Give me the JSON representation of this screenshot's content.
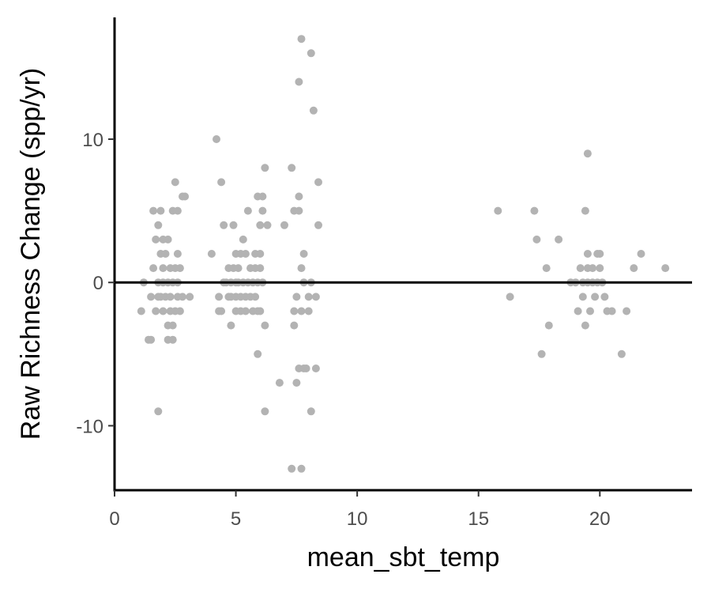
{
  "chart_data": {
    "type": "scatter",
    "xlabel": "mean_sbt_temp",
    "ylabel": "Raw Richness Change (spp/yr)",
    "xlim": [
      0,
      23.8
    ],
    "ylim": [
      -14.5,
      18.5
    ],
    "x_ticks": [
      0,
      5,
      10,
      15,
      20
    ],
    "y_ticks": [
      -10,
      0,
      10
    ],
    "grid": false,
    "legend": "none",
    "reference_line_y": 0,
    "point_color": "#b3b3b3",
    "points": [
      {
        "x": 1.1,
        "y": -2
      },
      {
        "x": 1.2,
        "y": 0
      },
      {
        "x": 1.4,
        "y": -4
      },
      {
        "x": 1.5,
        "y": -4
      },
      {
        "x": 1.5,
        "y": -1
      },
      {
        "x": 1.6,
        "y": 5
      },
      {
        "x": 1.6,
        "y": 1
      },
      {
        "x": 1.7,
        "y": 3
      },
      {
        "x": 1.7,
        "y": -2
      },
      {
        "x": 1.8,
        "y": 4
      },
      {
        "x": 1.8,
        "y": 0
      },
      {
        "x": 1.8,
        "y": -1
      },
      {
        "x": 1.8,
        "y": -9
      },
      {
        "x": 1.9,
        "y": 5
      },
      {
        "x": 1.9,
        "y": 2
      },
      {
        "x": 1.9,
        "y": -1
      },
      {
        "x": 2.0,
        "y": 3
      },
      {
        "x": 2.0,
        "y": 1
      },
      {
        "x": 2.0,
        "y": 0
      },
      {
        "x": 2.0,
        "y": -2
      },
      {
        "x": 2.1,
        "y": 2
      },
      {
        "x": 2.1,
        "y": -1
      },
      {
        "x": 2.2,
        "y": 3
      },
      {
        "x": 2.2,
        "y": 0
      },
      {
        "x": 2.2,
        "y": -3
      },
      {
        "x": 2.2,
        "y": -4
      },
      {
        "x": 2.3,
        "y": 1
      },
      {
        "x": 2.3,
        "y": -1
      },
      {
        "x": 2.3,
        "y": -2
      },
      {
        "x": 2.4,
        "y": 5
      },
      {
        "x": 2.4,
        "y": 0
      },
      {
        "x": 2.4,
        "y": -3
      },
      {
        "x": 2.4,
        "y": -4
      },
      {
        "x": 2.5,
        "y": 7
      },
      {
        "x": 2.5,
        "y": 1
      },
      {
        "x": 2.5,
        "y": -2
      },
      {
        "x": 2.6,
        "y": 5
      },
      {
        "x": 2.6,
        "y": 2
      },
      {
        "x": 2.6,
        "y": 0
      },
      {
        "x": 2.6,
        "y": -1
      },
      {
        "x": 2.7,
        "y": 1
      },
      {
        "x": 2.7,
        "y": -2
      },
      {
        "x": 2.8,
        "y": 6
      },
      {
        "x": 2.8,
        "y": -1
      },
      {
        "x": 2.9,
        "y": 6
      },
      {
        "x": 3.1,
        "y": -1
      },
      {
        "x": 4.0,
        "y": 2
      },
      {
        "x": 4.2,
        "y": 10
      },
      {
        "x": 4.3,
        "y": -1
      },
      {
        "x": 4.3,
        "y": -2
      },
      {
        "x": 4.4,
        "y": 7
      },
      {
        "x": 4.4,
        "y": -2
      },
      {
        "x": 4.5,
        "y": 0
      },
      {
        "x": 4.5,
        "y": 4
      },
      {
        "x": 4.6,
        "y": 0
      },
      {
        "x": 4.7,
        "y": 1
      },
      {
        "x": 4.7,
        "y": -1
      },
      {
        "x": 4.8,
        "y": 0
      },
      {
        "x": 4.8,
        "y": -1
      },
      {
        "x": 4.8,
        "y": -3
      },
      {
        "x": 4.9,
        "y": 4
      },
      {
        "x": 4.9,
        "y": 1
      },
      {
        "x": 5.0,
        "y": 2
      },
      {
        "x": 5.0,
        "y": 0
      },
      {
        "x": 5.0,
        "y": -1
      },
      {
        "x": 5.0,
        "y": -2
      },
      {
        "x": 5.1,
        "y": 1
      },
      {
        "x": 5.1,
        "y": 0
      },
      {
        "x": 5.2,
        "y": 2
      },
      {
        "x": 5.2,
        "y": -1
      },
      {
        "x": 5.2,
        "y": -2
      },
      {
        "x": 5.3,
        "y": 3
      },
      {
        "x": 5.3,
        "y": 0
      },
      {
        "x": 5.4,
        "y": 2
      },
      {
        "x": 5.4,
        "y": -1
      },
      {
        "x": 5.4,
        "y": -2
      },
      {
        "x": 5.5,
        "y": 5
      },
      {
        "x": 5.5,
        "y": 0
      },
      {
        "x": 5.6,
        "y": 1
      },
      {
        "x": 5.6,
        "y": -1
      },
      {
        "x": 5.7,
        "y": 0
      },
      {
        "x": 5.7,
        "y": -2
      },
      {
        "x": 5.8,
        "y": 2
      },
      {
        "x": 5.8,
        "y": 1
      },
      {
        "x": 5.8,
        "y": -1
      },
      {
        "x": 5.9,
        "y": 6
      },
      {
        "x": 5.9,
        "y": 0
      },
      {
        "x": 5.9,
        "y": -2
      },
      {
        "x": 5.9,
        "y": -5
      },
      {
        "x": 6.0,
        "y": 4
      },
      {
        "x": 6.0,
        "y": 2
      },
      {
        "x": 6.0,
        "y": 1
      },
      {
        "x": 6.0,
        "y": -2
      },
      {
        "x": 6.1,
        "y": 6
      },
      {
        "x": 6.1,
        "y": 5
      },
      {
        "x": 6.1,
        "y": 0
      },
      {
        "x": 6.2,
        "y": -3
      },
      {
        "x": 6.2,
        "y": -9
      },
      {
        "x": 6.2,
        "y": 8
      },
      {
        "x": 6.3,
        "y": 4
      },
      {
        "x": 6.8,
        "y": -7
      },
      {
        "x": 7.0,
        "y": 4
      },
      {
        "x": 7.3,
        "y": 8
      },
      {
        "x": 7.3,
        "y": -13
      },
      {
        "x": 7.4,
        "y": 5
      },
      {
        "x": 7.4,
        "y": -2
      },
      {
        "x": 7.4,
        "y": -3
      },
      {
        "x": 7.5,
        "y": -7
      },
      {
        "x": 7.5,
        "y": -1
      },
      {
        "x": 7.6,
        "y": 14
      },
      {
        "x": 7.6,
        "y": 5
      },
      {
        "x": 7.6,
        "y": 6
      },
      {
        "x": 7.6,
        "y": -6
      },
      {
        "x": 7.7,
        "y": 17
      },
      {
        "x": 7.7,
        "y": 1
      },
      {
        "x": 7.7,
        "y": -2
      },
      {
        "x": 7.7,
        "y": -13
      },
      {
        "x": 7.8,
        "y": 2
      },
      {
        "x": 7.8,
        "y": -6
      },
      {
        "x": 7.8,
        "y": 0
      },
      {
        "x": 7.9,
        "y": -6
      },
      {
        "x": 8.0,
        "y": -1
      },
      {
        "x": 8.0,
        "y": -2
      },
      {
        "x": 8.1,
        "y": 16
      },
      {
        "x": 8.1,
        "y": 0
      },
      {
        "x": 8.1,
        "y": -9
      },
      {
        "x": 8.2,
        "y": 12
      },
      {
        "x": 8.3,
        "y": -1
      },
      {
        "x": 8.3,
        "y": -6
      },
      {
        "x": 8.4,
        "y": 7
      },
      {
        "x": 8.4,
        "y": 4
      },
      {
        "x": 15.8,
        "y": 5
      },
      {
        "x": 16.3,
        "y": -1
      },
      {
        "x": 17.3,
        "y": 5
      },
      {
        "x": 17.4,
        "y": 3
      },
      {
        "x": 17.6,
        "y": -5
      },
      {
        "x": 17.8,
        "y": 1
      },
      {
        "x": 17.9,
        "y": -3
      },
      {
        "x": 18.3,
        "y": 3
      },
      {
        "x": 18.8,
        "y": 0
      },
      {
        "x": 19.0,
        "y": 0
      },
      {
        "x": 19.1,
        "y": -2
      },
      {
        "x": 19.2,
        "y": 1
      },
      {
        "x": 19.3,
        "y": 0
      },
      {
        "x": 19.3,
        "y": -1
      },
      {
        "x": 19.4,
        "y": -3
      },
      {
        "x": 19.4,
        "y": 5
      },
      {
        "x": 19.5,
        "y": 2
      },
      {
        "x": 19.5,
        "y": 1
      },
      {
        "x": 19.5,
        "y": 9
      },
      {
        "x": 19.5,
        "y": 0
      },
      {
        "x": 19.6,
        "y": -2
      },
      {
        "x": 19.7,
        "y": 1
      },
      {
        "x": 19.7,
        "y": 0
      },
      {
        "x": 19.8,
        "y": -1
      },
      {
        "x": 19.9,
        "y": 2
      },
      {
        "x": 19.9,
        "y": 0
      },
      {
        "x": 20.0,
        "y": 1
      },
      {
        "x": 20.0,
        "y": 2
      },
      {
        "x": 20.1,
        "y": 0
      },
      {
        "x": 20.2,
        "y": -1
      },
      {
        "x": 20.3,
        "y": -2
      },
      {
        "x": 20.5,
        "y": -2
      },
      {
        "x": 20.9,
        "y": -5
      },
      {
        "x": 21.1,
        "y": -2
      },
      {
        "x": 21.4,
        "y": 1
      },
      {
        "x": 21.7,
        "y": 2
      },
      {
        "x": 22.7,
        "y": 1
      }
    ]
  }
}
